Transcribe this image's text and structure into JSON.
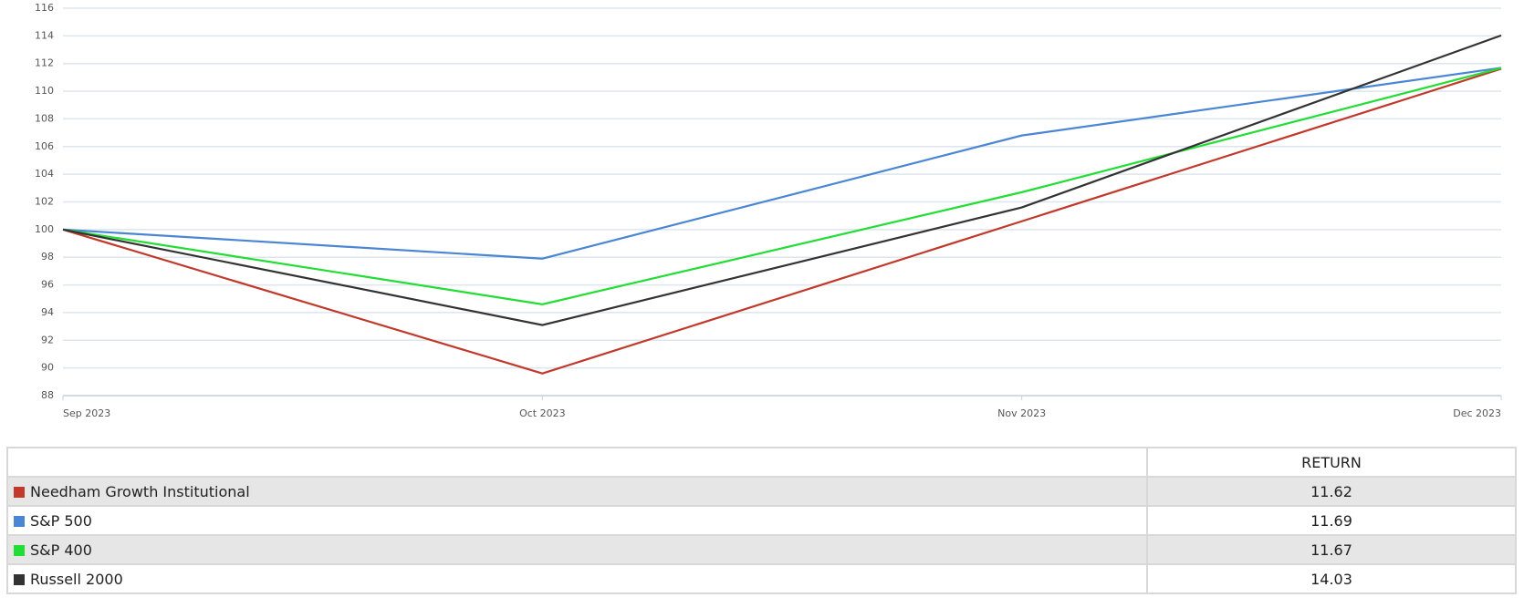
{
  "chart_data": {
    "type": "line",
    "categories": [
      "Sep 2023",
      "Oct 2023",
      "Nov 2023",
      "Dec 2023"
    ],
    "series": [
      {
        "name": "Needham Growth Institutional",
        "color": "#c0392b",
        "values": [
          100,
          89.6,
          100.6,
          111.62
        ]
      },
      {
        "name": "S&P 500",
        "color": "#4a86d4",
        "values": [
          100,
          97.9,
          106.8,
          111.69
        ]
      },
      {
        "name": "S&P 400",
        "color": "#22dd33",
        "values": [
          100,
          94.6,
          102.7,
          111.67
        ]
      },
      {
        "name": "Russell 2000",
        "color": "#333333",
        "values": [
          100,
          93.1,
          101.6,
          114.03
        ]
      }
    ],
    "ylim": [
      88,
      116
    ],
    "yticks": [
      88,
      90,
      92,
      94,
      96,
      98,
      100,
      102,
      104,
      106,
      108,
      110,
      112,
      114,
      116
    ],
    "grid": true
  },
  "table": {
    "header": "RETURN",
    "returns": [
      11.62,
      11.69,
      11.67,
      14.03
    ]
  }
}
